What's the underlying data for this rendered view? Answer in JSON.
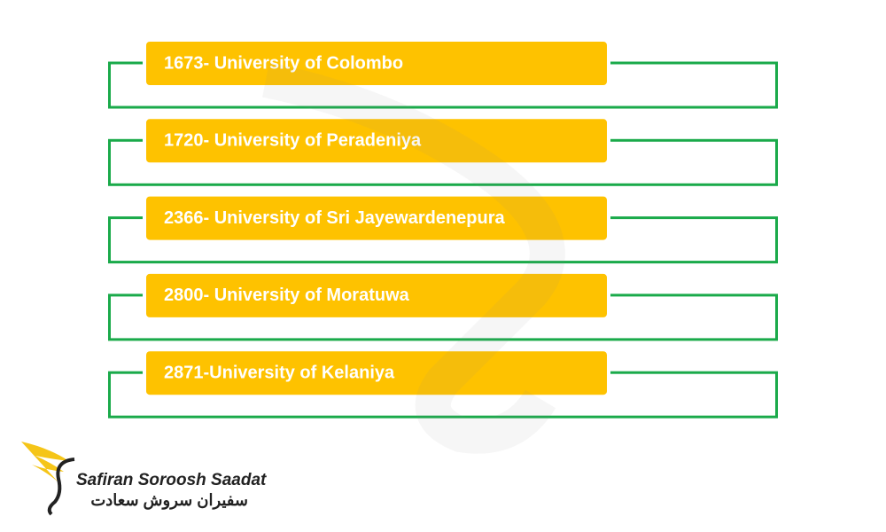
{
  "items": [
    {
      "label": "1673- University of Colombo"
    },
    {
      "label": "1720- University of Peradeniya"
    },
    {
      "label": "2366- University of Sri Jayewardenepura"
    },
    {
      "label": "2800- University of Moratuwa"
    },
    {
      "label": "2871-University of Kelaniya"
    }
  ],
  "logo": {
    "name": "Safiran Soroosh Saadat",
    "name_fa": "سفیران سروش سعادت"
  }
}
